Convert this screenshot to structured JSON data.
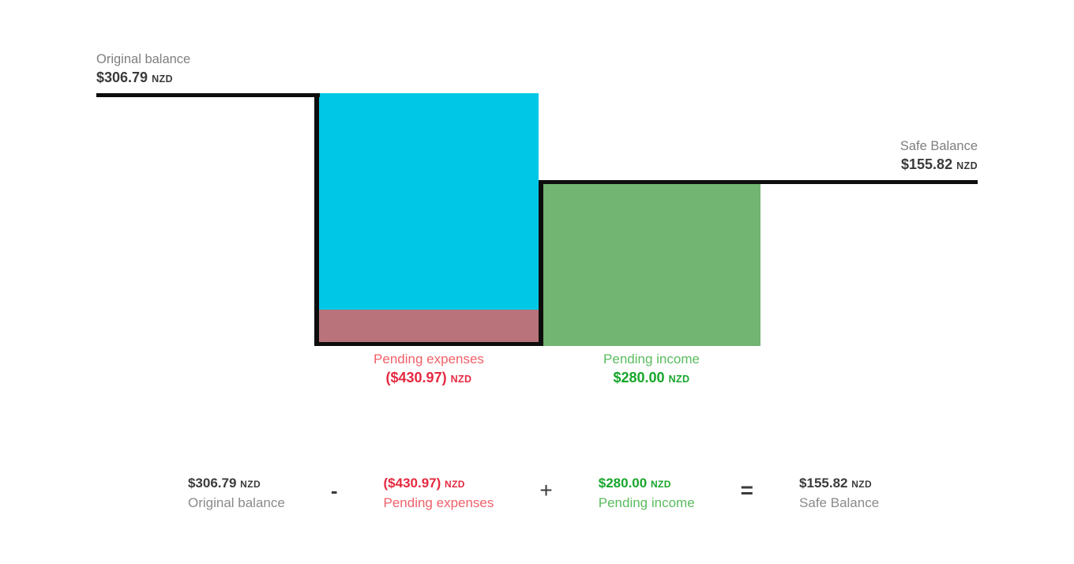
{
  "page": {
    "background": "#ffffff"
  },
  "colors": {
    "baseline": "#0d0d0d",
    "expense_bar_fill": "#00c7e6",
    "expense_overdraft_fill": "#b8747a",
    "income_bar_fill": "#72b471",
    "gray_label": "#7f7f7f",
    "dark_amount": "#3b3b3b",
    "red_label": "#f0606a",
    "red_amount": "#e52940",
    "green_label": "#5abc5e",
    "green_amount": "#17a62b"
  },
  "blocks": {
    "original": {
      "label": "Original balance",
      "amount": "$306.79",
      "currency": "NZD"
    },
    "safe": {
      "label": "Safe Balance",
      "amount": "$155.82",
      "currency": "NZD"
    },
    "expenses": {
      "label": "Pending expenses",
      "amount": "($430.97)",
      "currency": "NZD"
    },
    "income": {
      "label": "Pending income",
      "amount": "$280.00",
      "currency": "NZD"
    }
  },
  "equation": {
    "terms": [
      {
        "amount": "$306.79",
        "currency": "NZD",
        "label": "Original balance"
      },
      {
        "amount": "($430.97)",
        "currency": "NZD",
        "label": "Pending expenses"
      },
      {
        "amount": "$280.00",
        "currency": "NZD",
        "label": "Pending income"
      },
      {
        "amount": "$155.82",
        "currency": "NZD",
        "label": "Safe Balance"
      }
    ],
    "operators": {
      "minus": "-",
      "plus": "+",
      "equals": "="
    }
  },
  "chart_data": {
    "type": "waterfall",
    "title": "",
    "currency": "NZD",
    "steps": [
      {
        "name": "Original balance",
        "value": 306.79,
        "role": "start"
      },
      {
        "name": "Pending expenses",
        "value": -430.97,
        "role": "decrease"
      },
      {
        "name": "Pending income",
        "value": 280.0,
        "role": "increase"
      },
      {
        "name": "Safe Balance",
        "value": 155.82,
        "role": "end"
      }
    ],
    "equation_text": "$306.79 NZD Original balance - ($430.97) NZD Pending expenses + $280.00 NZD Pending income = $155.82 NZD Safe Balance",
    "legend_position": "none",
    "grid": false,
    "axes_visible": false,
    "colors": {
      "expense_bar_fill": "#00c7e6",
      "expense_overdraft_fill": "#b8747a",
      "income_bar_fill": "#72b471",
      "balance_line": "#0d0d0d"
    }
  }
}
